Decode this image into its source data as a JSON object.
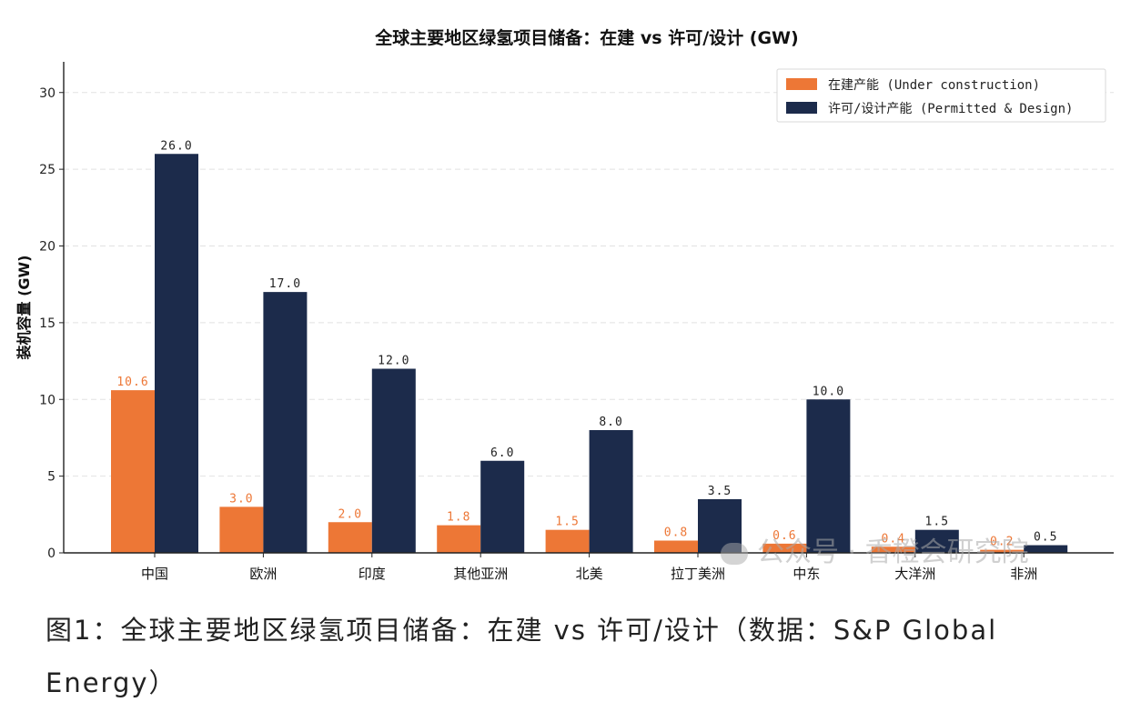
{
  "chart_data": {
    "type": "bar",
    "title": "全球主要地区绿氢项目储备：在建 vs 许可/设计 (GW)",
    "xlabel": "",
    "ylabel": "装机容量 (GW)",
    "ylim": [
      0,
      32
    ],
    "yticks": [
      0,
      5,
      10,
      15,
      20,
      25,
      30
    ],
    "grid": true,
    "legend_position": "top-right",
    "categories": [
      "中国",
      "欧洲",
      "印度",
      "其他亚洲",
      "北美",
      "拉丁美洲",
      "中东",
      "大洋洲",
      "非洲"
    ],
    "series": [
      {
        "name": "在建产能 (Under construction)",
        "color": "#ed7736",
        "values": [
          10.6,
          3.0,
          2.0,
          1.8,
          1.5,
          0.8,
          0.6,
          0.4,
          0.2
        ]
      },
      {
        "name": "许可/设计产能 (Permitted & Design)",
        "color": "#1c2b4b",
        "values": [
          26.0,
          17.0,
          12.0,
          6.0,
          8.0,
          3.5,
          10.0,
          1.5,
          0.5
        ]
      }
    ]
  },
  "caption": "图1：全球主要地区绿氢项目储备：在建 vs 许可/设计（数据：S&P Global Energy）",
  "watermark": "公众号 · 香橙会研究院"
}
